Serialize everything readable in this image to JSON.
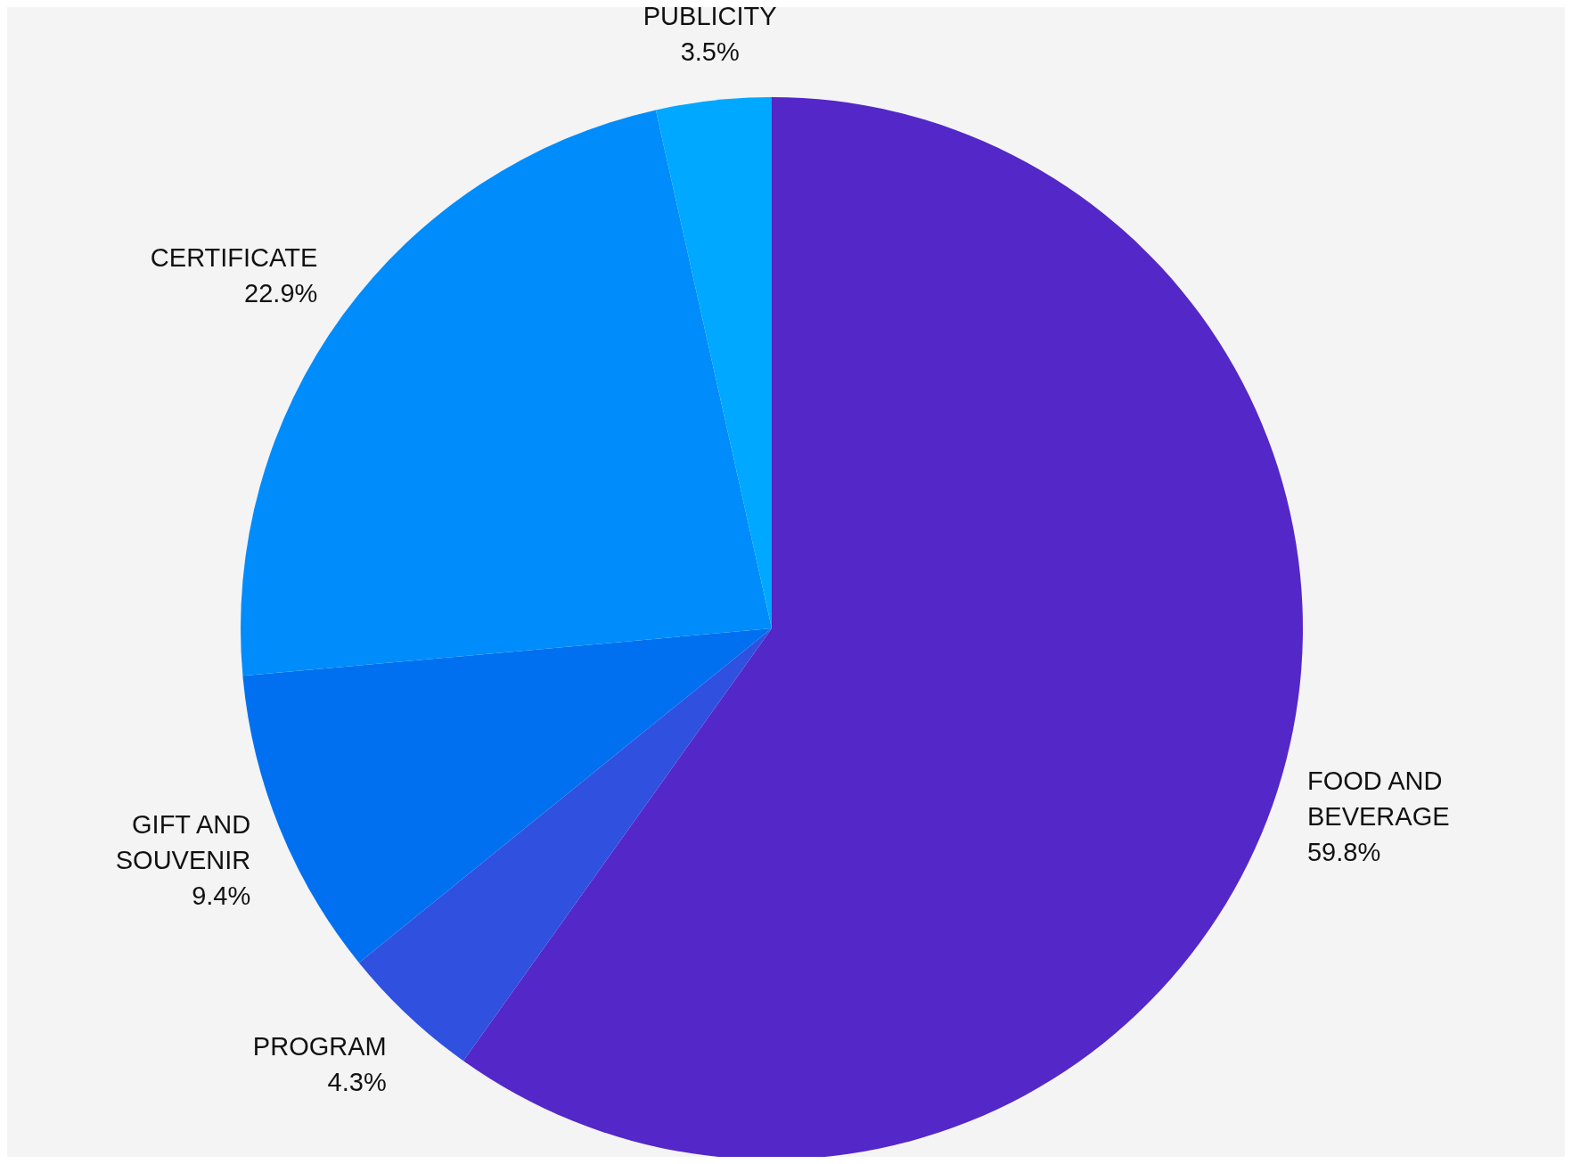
{
  "chart_data": {
    "type": "pie",
    "categories": [
      "FOOD AND BEVERAGE",
      "PROGRAM",
      "GIFT AND SOUVENIR",
      "CERTIFICATE",
      "PUBLICITY"
    ],
    "values": [
      59.8,
      4.3,
      9.4,
      22.9,
      3.5
    ],
    "value_labels": [
      "59.8%",
      "4.3%",
      "9.4%",
      "22.9%",
      "3.5%"
    ],
    "colors": [
      "#5427c8",
      "#3050e0",
      "#0070f0",
      "#008cfa",
      "#00a8ff"
    ]
  }
}
